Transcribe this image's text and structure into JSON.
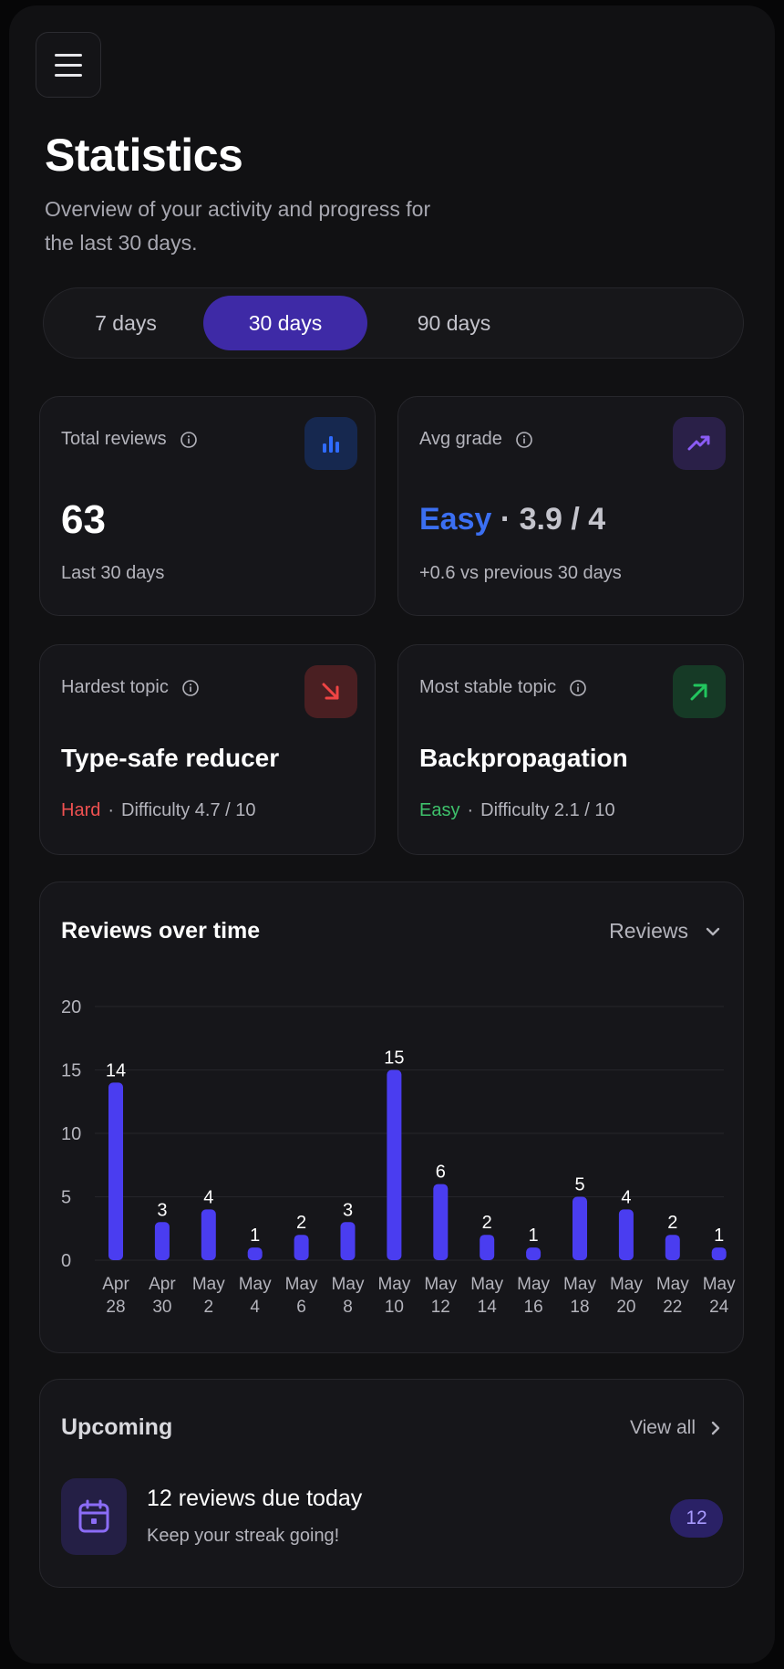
{
  "header": {
    "title": "Statistics",
    "subtitle": "Overview of your activity and progress for the last 30 days."
  },
  "range_tabs": [
    {
      "label": "7 days",
      "selected": false
    },
    {
      "label": "30 days",
      "selected": true
    },
    {
      "label": "90 days",
      "selected": false
    }
  ],
  "stats": {
    "total_reviews": {
      "label": "Total reviews",
      "value": "63",
      "footnote": "Last 30 days",
      "icon": "bar-chart-icon",
      "accent": "#2f6bff"
    },
    "avg_grade": {
      "label": "Avg grade",
      "grade_word": "Easy",
      "grade_value": "· 3.9 / 4",
      "footnote": "+0.6 vs previous 30 days",
      "icon": "trending-up-icon",
      "accent": "#8b5cf6"
    },
    "hardest_topic": {
      "label": "Hardest topic",
      "name": "Type-safe reducer",
      "level": "Hard",
      "difficulty": "Difficulty 4.7 / 10",
      "icon": "arrow-down-right-icon",
      "accent": "#ef4444"
    },
    "most_stable_topic": {
      "label": "Most stable topic",
      "name": "Backpropagation",
      "level": "Easy",
      "difficulty": "Difficulty 2.1 / 10",
      "icon": "arrow-up-right-icon",
      "accent": "#22c55e"
    }
  },
  "reviews_chart": {
    "title": "Reviews over time",
    "metric_select": "Reviews"
  },
  "chart_data": {
    "type": "bar",
    "categories": [
      [
        "Apr",
        "28"
      ],
      [
        "Apr",
        "30"
      ],
      [
        "May",
        "2"
      ],
      [
        "May",
        "4"
      ],
      [
        "May",
        "6"
      ],
      [
        "May",
        "8"
      ],
      [
        "May",
        "10"
      ],
      [
        "May",
        "12"
      ],
      [
        "May",
        "14"
      ],
      [
        "May",
        "16"
      ],
      [
        "May",
        "18"
      ],
      [
        "May",
        "20"
      ],
      [
        "May",
        "22"
      ],
      [
        "May",
        "24"
      ]
    ],
    "values": [
      14,
      3,
      4,
      1,
      2,
      3,
      15,
      6,
      2,
      1,
      5,
      4,
      2,
      1
    ],
    "yticks": [
      0,
      5,
      10,
      15,
      20
    ],
    "ylim": [
      0,
      20
    ],
    "grid": true,
    "bar_color": "#4a3df0",
    "title": "Reviews over time",
    "xlabel": "",
    "ylabel": ""
  },
  "upcoming": {
    "title": "Upcoming",
    "view_all": "View all",
    "item_title": "12 reviews due today",
    "item_subtitle": "Keep your streak going!",
    "item_count": "12",
    "item_icon": "calendar-icon"
  }
}
